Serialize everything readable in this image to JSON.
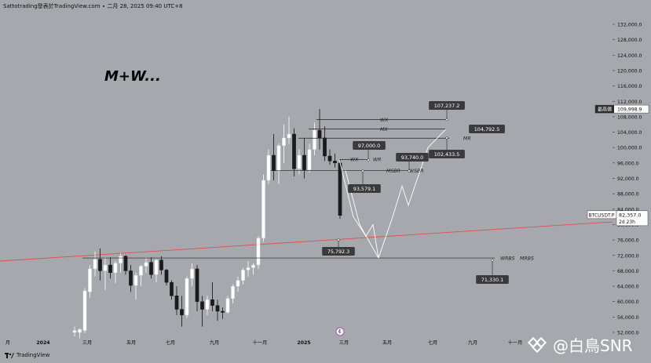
{
  "header": {
    "title": "Sattotrading發表於TradingView.com ∙ 二月 28, 2025 09:40 UTC+8"
  },
  "footer": {
    "brand": "TradingView"
  },
  "watermark": {
    "text": "@白鳥SNR"
  },
  "annotation": {
    "title": "M+W..."
  },
  "colors": {
    "background": "#a7a8ad",
    "bull_candle": "#ffffff",
    "bear_candle": "#1b1b1b",
    "trendline": "#d9534f",
    "projection": "#ffffff",
    "label_bg": "#3a3a3d"
  },
  "chart_data": {
    "type": "candlestick",
    "symbol": "BTCUSDT.P",
    "last_price": "82,357.0",
    "countdown": "2d 23h",
    "high_label": "最高價",
    "high_price": "109,998.9",
    "ylim": [
      50800,
      135200
    ],
    "y_ticks": [
      52000,
      56000,
      60000,
      64000,
      68000,
      72000,
      76000,
      80000,
      84000,
      88000,
      92000,
      96000,
      100000,
      104000,
      108000,
      112000,
      116000,
      120000,
      124000,
      128000,
      132000
    ],
    "y_tick_labels": [
      "52,000.0",
      "56,000.0",
      "60,000.0",
      "64,000.0",
      "68,000.0",
      "72,000.0",
      "76,000.0",
      "80,000.0",
      "84,000.0",
      "88,000.0",
      "92,000.0",
      "96,000.0",
      "100,000.0",
      "104,000.0",
      "108,000.0",
      "112,000.0",
      "116,000.0",
      "120,000.0",
      "124,000.0",
      "128,000.0",
      "132,000.0"
    ],
    "x_ticks": [
      "月",
      "2024",
      "三月",
      "五月",
      "七月",
      "九月",
      "十一月",
      "2025",
      "三月",
      "五月",
      "七月",
      "九月",
      "十一月"
    ],
    "candles": [
      {
        "o": 52000,
        "h": 53500,
        "l": 51000,
        "c": 52500
      },
      {
        "o": 52000,
        "h": 53000,
        "l": 50500,
        "c": 52800
      },
      {
        "o": 52500,
        "h": 63500,
        "l": 51800,
        "c": 62800
      },
      {
        "o": 62500,
        "h": 69500,
        "l": 61000,
        "c": 68500
      },
      {
        "o": 68500,
        "h": 73000,
        "l": 66500,
        "c": 71000
      },
      {
        "o": 71000,
        "h": 73800,
        "l": 65500,
        "c": 68000
      },
      {
        "o": 68000,
        "h": 71500,
        "l": 63000,
        "c": 69500
      },
      {
        "o": 69500,
        "h": 71500,
        "l": 66000,
        "c": 67500
      },
      {
        "o": 67500,
        "h": 70500,
        "l": 64800,
        "c": 70000
      },
      {
        "o": 70000,
        "h": 72500,
        "l": 67500,
        "c": 71800
      },
      {
        "o": 71800,
        "h": 72000,
        "l": 67000,
        "c": 68000
      },
      {
        "o": 68000,
        "h": 69500,
        "l": 62500,
        "c": 64200
      },
      {
        "o": 64200,
        "h": 67500,
        "l": 60500,
        "c": 66800
      },
      {
        "o": 66800,
        "h": 69500,
        "l": 64000,
        "c": 69200
      },
      {
        "o": 69200,
        "h": 71500,
        "l": 67500,
        "c": 70200
      },
      {
        "o": 70200,
        "h": 71500,
        "l": 66000,
        "c": 67000
      },
      {
        "o": 67000,
        "h": 71000,
        "l": 65000,
        "c": 70800
      },
      {
        "o": 70800,
        "h": 71800,
        "l": 67000,
        "c": 68200
      },
      {
        "o": 68200,
        "h": 68500,
        "l": 64200,
        "c": 65000
      },
      {
        "o": 65000,
        "h": 65500,
        "l": 60500,
        "c": 61500
      },
      {
        "o": 61500,
        "h": 64000,
        "l": 56500,
        "c": 58000
      },
      {
        "o": 58000,
        "h": 61500,
        "l": 53500,
        "c": 56500
      },
      {
        "o": 56500,
        "h": 66500,
        "l": 55800,
        "c": 66000
      },
      {
        "o": 66000,
        "h": 70000,
        "l": 64000,
        "c": 68500
      },
      {
        "o": 68500,
        "h": 69500,
        "l": 57500,
        "c": 60000
      },
      {
        "o": 60000,
        "h": 61500,
        "l": 53500,
        "c": 58000
      },
      {
        "o": 58000,
        "h": 61500,
        "l": 56500,
        "c": 60500
      },
      {
        "o": 60500,
        "h": 65000,
        "l": 57500,
        "c": 59000
      },
      {
        "o": 59000,
        "h": 60500,
        "l": 55000,
        "c": 57500
      },
      {
        "o": 57500,
        "h": 58500,
        "l": 55500,
        "c": 57200
      },
      {
        "o": 57200,
        "h": 61500,
        "l": 56800,
        "c": 60800
      },
      {
        "o": 60800,
        "h": 64500,
        "l": 59500,
        "c": 64000
      },
      {
        "o": 64000,
        "h": 66500,
        "l": 62500,
        "c": 65500
      },
      {
        "o": 65500,
        "h": 68800,
        "l": 64500,
        "c": 68200
      },
      {
        "o": 68200,
        "h": 70500,
        "l": 66500,
        "c": 68800
      },
      {
        "o": 68800,
        "h": 70000,
        "l": 67000,
        "c": 69500
      },
      {
        "o": 69500,
        "h": 77000,
        "l": 68500,
        "c": 76500
      },
      {
        "o": 76500,
        "h": 93000,
        "l": 75500,
        "c": 91500
      },
      {
        "o": 91500,
        "h": 99500,
        "l": 90500,
        "c": 98000
      },
      {
        "o": 98000,
        "h": 103500,
        "l": 91500,
        "c": 94000
      },
      {
        "o": 94000,
        "h": 101000,
        "l": 90500,
        "c": 100500
      },
      {
        "o": 100500,
        "h": 106000,
        "l": 96000,
        "c": 102500
      },
      {
        "o": 102500,
        "h": 108000,
        "l": 101000,
        "c": 103500
      },
      {
        "o": 103500,
        "h": 105000,
        "l": 92500,
        "c": 94500
      },
      {
        "o": 94500,
        "h": 99500,
        "l": 93000,
        "c": 98000
      },
      {
        "o": 98000,
        "h": 102500,
        "l": 92000,
        "c": 94200
      },
      {
        "o": 94200,
        "h": 101000,
        "l": 93500,
        "c": 99500
      },
      {
        "o": 99500,
        "h": 106500,
        "l": 98000,
        "c": 104500
      },
      {
        "o": 104500,
        "h": 109999,
        "l": 99500,
        "c": 102500
      },
      {
        "o": 102500,
        "h": 105500,
        "l": 96500,
        "c": 97800
      },
      {
        "o": 97800,
        "h": 99500,
        "l": 95500,
        "c": 96500
      },
      {
        "o": 96500,
        "h": 98500,
        "l": 94800,
        "c": 96000
      },
      {
        "o": 96000,
        "h": 97000,
        "l": 81500,
        "c": 82357
      }
    ],
    "levels": [
      {
        "label": "WX",
        "value": 107237.2
      },
      {
        "label": "MX",
        "value": 104792.5
      },
      {
        "label": "MR",
        "value": 102433.5
      },
      {
        "label": "WR",
        "value": 96900
      },
      {
        "label": "MSBR",
        "value": 94000
      },
      {
        "label": "WSBR",
        "value": 94000
      },
      {
        "label": "WRBS",
        "value": 71330.1
      },
      {
        "label": "MRBS",
        "value": 71330.1
      }
    ],
    "price_labels": [
      "107,237.2",
      "104,792.5",
      "102,433.5",
      "97,000.0",
      "93,740.0",
      "93,579.1",
      "75,792.3",
      "71,330.1"
    ],
    "trendline": {
      "from": [
        70500,
        "2023-11"
      ],
      "to": [
        80500,
        "2025-11"
      ]
    }
  }
}
